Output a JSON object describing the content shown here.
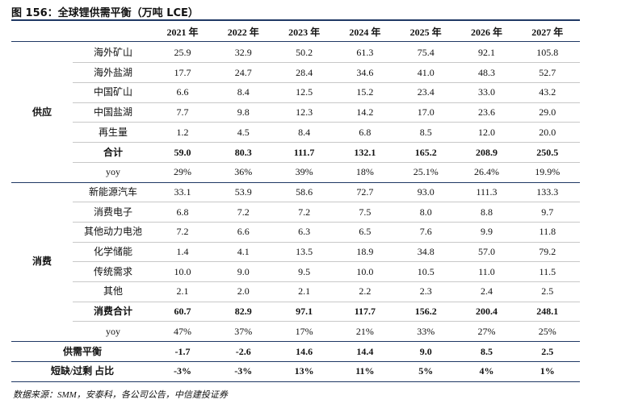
{
  "title": "图 156：全球锂供需平衡（万吨 LCE）",
  "table": {
    "header": [
      "2021 年",
      "2022 年",
      "2023 年",
      "2024 年",
      "2025 年",
      "2026 年",
      "2027 年"
    ],
    "groups": [
      {
        "label": "供应",
        "rows": [
          {
            "label": "海外矿山",
            "values": [
              "25.9",
              "32.9",
              "50.2",
              "61.3",
              "75.4",
              "92.1",
              "105.8"
            ]
          },
          {
            "label": "海外盐湖",
            "values": [
              "17.7",
              "24.7",
              "28.4",
              "34.6",
              "41.0",
              "48.3",
              "52.7"
            ]
          },
          {
            "label": "中国矿山",
            "values": [
              "6.6",
              "8.4",
              "12.5",
              "15.2",
              "23.4",
              "33.0",
              "43.2"
            ]
          },
          {
            "label": "中国盐湖",
            "values": [
              "7.7",
              "9.8",
              "12.3",
              "14.2",
              "17.0",
              "23.6",
              "29.0"
            ]
          },
          {
            "label": "再生量",
            "values": [
              "1.2",
              "4.5",
              "8.4",
              "6.8",
              "8.5",
              "12.0",
              "20.0"
            ]
          },
          {
            "label": "合计",
            "bold": true,
            "values": [
              "59.0",
              "80.3",
              "111.7",
              "132.1",
              "165.2",
              "208.9",
              "250.5"
            ]
          },
          {
            "label": "yoy",
            "values": [
              "29%",
              "36%",
              "39%",
              "18%",
              "25.1%",
              "26.4%",
              "19.9%"
            ]
          }
        ]
      },
      {
        "label": "消费",
        "rows": [
          {
            "label": "新能源汽车",
            "values": [
              "33.1",
              "53.9",
              "58.6",
              "72.7",
              "93.0",
              "111.3",
              "133.3"
            ]
          },
          {
            "label": "消费电子",
            "values": [
              "6.8",
              "7.2",
              "7.2",
              "7.5",
              "8.0",
              "8.8",
              "9.7"
            ]
          },
          {
            "label": "其他动力电池",
            "values": [
              "7.2",
              "6.6",
              "6.3",
              "6.5",
              "7.6",
              "9.9",
              "11.8"
            ]
          },
          {
            "label": "化学储能",
            "values": [
              "1.4",
              "4.1",
              "13.5",
              "18.9",
              "34.8",
              "57.0",
              "79.2"
            ]
          },
          {
            "label": "传统需求",
            "values": [
              "10.0",
              "9.0",
              "9.5",
              "10.0",
              "10.5",
              "11.0",
              "11.5"
            ]
          },
          {
            "label": "其他",
            "values": [
              "2.1",
              "2.0",
              "2.1",
              "2.2",
              "2.3",
              "2.4",
              "2.5"
            ]
          },
          {
            "label": "消费合计",
            "bold": true,
            "values": [
              "60.7",
              "82.9",
              "97.1",
              "117.7",
              "156.2",
              "200.4",
              "248.1"
            ]
          },
          {
            "label": "yoy",
            "values": [
              "47%",
              "37%",
              "17%",
              "21%",
              "33%",
              "27%",
              "25%"
            ]
          }
        ]
      }
    ],
    "summary_rows": [
      {
        "label": "供需平衡",
        "values": [
          "-1.7",
          "-2.6",
          "14.6",
          "14.4",
          "9.0",
          "8.5",
          "2.5"
        ]
      },
      {
        "label": "短缺/过剩 占比",
        "values": [
          "-3%",
          "-3%",
          "13%",
          "11%",
          "5%",
          "4%",
          "1%"
        ]
      }
    ]
  },
  "source": "数据来源：SMM，安泰科，各公司公告，中信建投证券"
}
